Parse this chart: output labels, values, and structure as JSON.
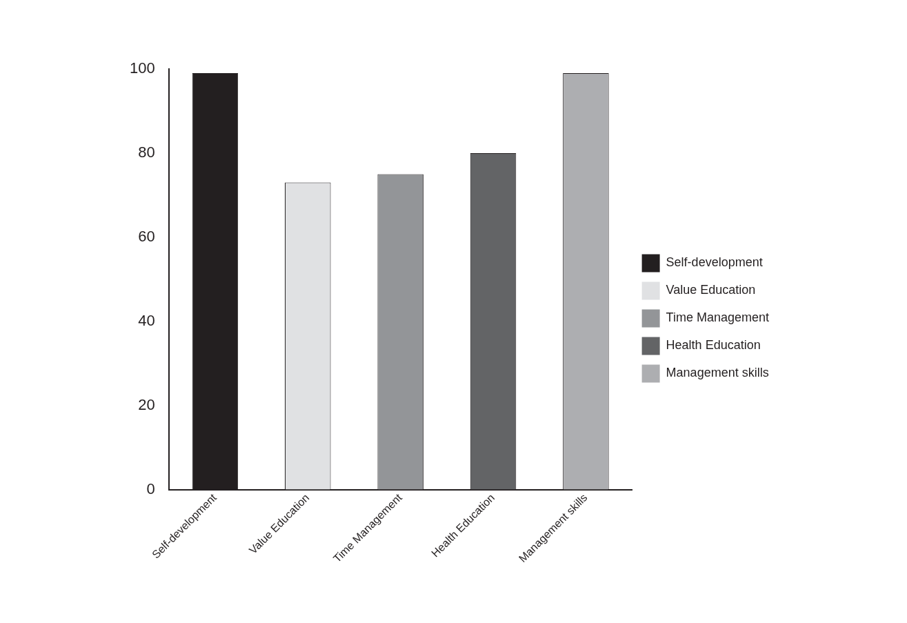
{
  "chart_data": {
    "type": "bar",
    "categories": [
      "Self-development",
      "Value Education",
      "Time Management",
      "Health Education",
      "Management skills"
    ],
    "series": [
      {
        "name": "Self-development",
        "color": "#231f20",
        "values": [
          99,
          null,
          null,
          null,
          null
        ]
      },
      {
        "name": "Value Education",
        "color": "#e0e1e3",
        "values": [
          null,
          73,
          null,
          null,
          null
        ]
      },
      {
        "name": "Time Management",
        "color": "#939598",
        "values": [
          null,
          null,
          75,
          null,
          null
        ]
      },
      {
        "name": "Health Education",
        "color": "#636466",
        "values": [
          null,
          null,
          null,
          80,
          null
        ]
      },
      {
        "name": "Management skills",
        "color": "#adaeb1",
        "values": [
          null,
          null,
          null,
          null,
          99
        ]
      }
    ],
    "ylim": [
      0,
      100
    ],
    "yticks": [
      0,
      20,
      40,
      60,
      80,
      100
    ],
    "legend": "right"
  }
}
